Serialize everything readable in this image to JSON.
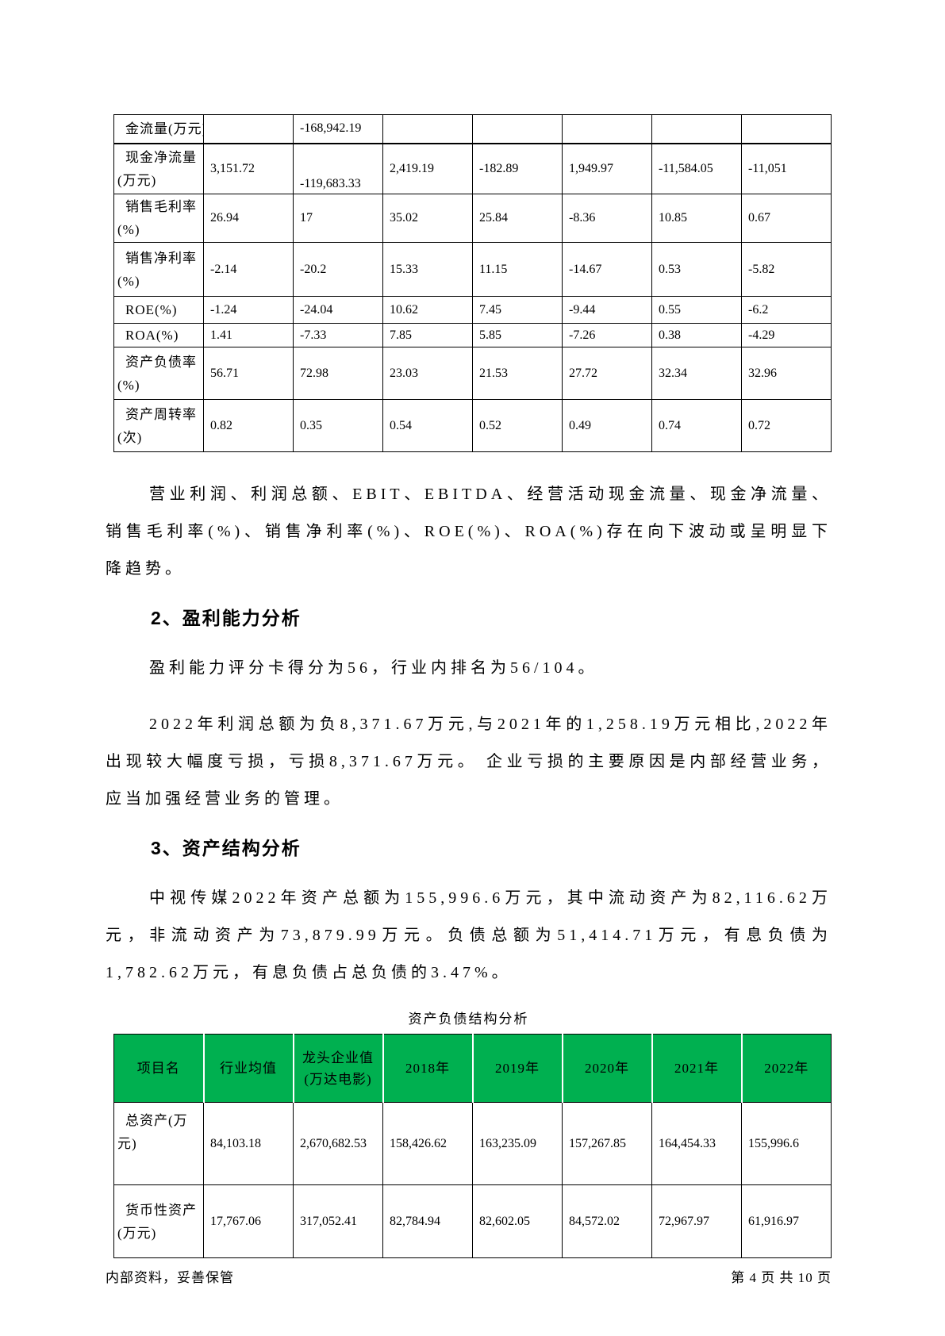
{
  "colors": {
    "table_header_green": "#00B050"
  },
  "financial_table": {
    "rows": [
      {
        "label": "金流量(万元)",
        "values": [
          "",
          "-168,942.19",
          "",
          "",
          "",
          "",
          ""
        ]
      },
      {
        "label": "现金净流量\n(万元)",
        "values": [
          "3,151.72",
          "-119,683.33",
          "2,419.19",
          "-182.89",
          "1,949.97",
          "-11,584.05",
          "-11,051"
        ]
      },
      {
        "label": "销售毛利率\n(%)",
        "values": [
          "26.94",
          "17",
          "35.02",
          "25.84",
          "-8.36",
          "10.85",
          "0.67"
        ]
      },
      {
        "label": "销售净利率\n(%)",
        "values": [
          "-2.14",
          "-20.2",
          "15.33",
          "11.15",
          "-14.67",
          "0.53",
          "-5.82"
        ]
      },
      {
        "label": "ROE(%)",
        "values": [
          "-1.24",
          "-24.04",
          "10.62",
          "7.45",
          "-9.44",
          "0.55",
          "-6.2"
        ]
      },
      {
        "label": "ROA(%)",
        "values": [
          "1.41",
          "-7.33",
          "7.85",
          "5.85",
          "-7.26",
          "0.38",
          "-4.29"
        ]
      },
      {
        "label": "资产负债率\n(%)",
        "values": [
          "56.71",
          "72.98",
          "23.03",
          "21.53",
          "27.72",
          "32.34",
          "32.96"
        ]
      },
      {
        "label": "资产周转率\n(次)",
        "values": [
          "0.82",
          "0.35",
          "0.54",
          "0.52",
          "0.49",
          "0.74",
          "0.72"
        ]
      }
    ]
  },
  "body": {
    "paragraph_trend": "营业利润、利润总额、EBIT、EBITDA、经营活动现金流量、现金净流量、销售毛利率(%)、销售净利率(%)、ROE(%)、ROA(%)存在向下波动或呈明显下降趋势。",
    "section2_heading": "2、盈利能力分析",
    "paragraph_score": "盈利能力评分卡得分为56，行业内排名为56/104。",
    "paragraph_loss": "2022年利润总额为负8,371.67万元,与2021年的1,258.19万元相比,2022年出现较大幅度亏损，亏损8,371.67万元。 企业亏损的主要原因是内部经营业务，应当加强经营业务的管理。",
    "section3_heading": "3、资产结构分析",
    "paragraph_assets": "中视传媒2022年资产总额为155,996.6万元，其中流动资产为82,116.62万元，非流动资产为73,879.99万元。负债总额为51,414.71万元，有息负债为1,782.62万元，有息负债占总负债的3.47%。"
  },
  "balance_table": {
    "caption": "资产负债结构分析",
    "headers": [
      "项目名",
      "行业均值",
      "龙头企业值\n(万达电影)",
      "2018年",
      "2019年",
      "2020年",
      "2021年",
      "2022年"
    ],
    "rows": [
      {
        "label": "总资产(万元)",
        "values": [
          "84,103.18",
          "2,670,682.53",
          "158,426.62",
          "163,235.09",
          "157,267.85",
          "164,454.33",
          "155,996.6"
        ]
      },
      {
        "label": "货币性资产\n(万元)",
        "values": [
          "17,767.06",
          "317,052.41",
          "82,784.94",
          "82,602.05",
          "84,572.02",
          "72,967.97",
          "61,916.97"
        ]
      }
    ]
  },
  "footer": {
    "left": "内部资料，妥善保管",
    "right": "第 4 页  共 10 页"
  }
}
